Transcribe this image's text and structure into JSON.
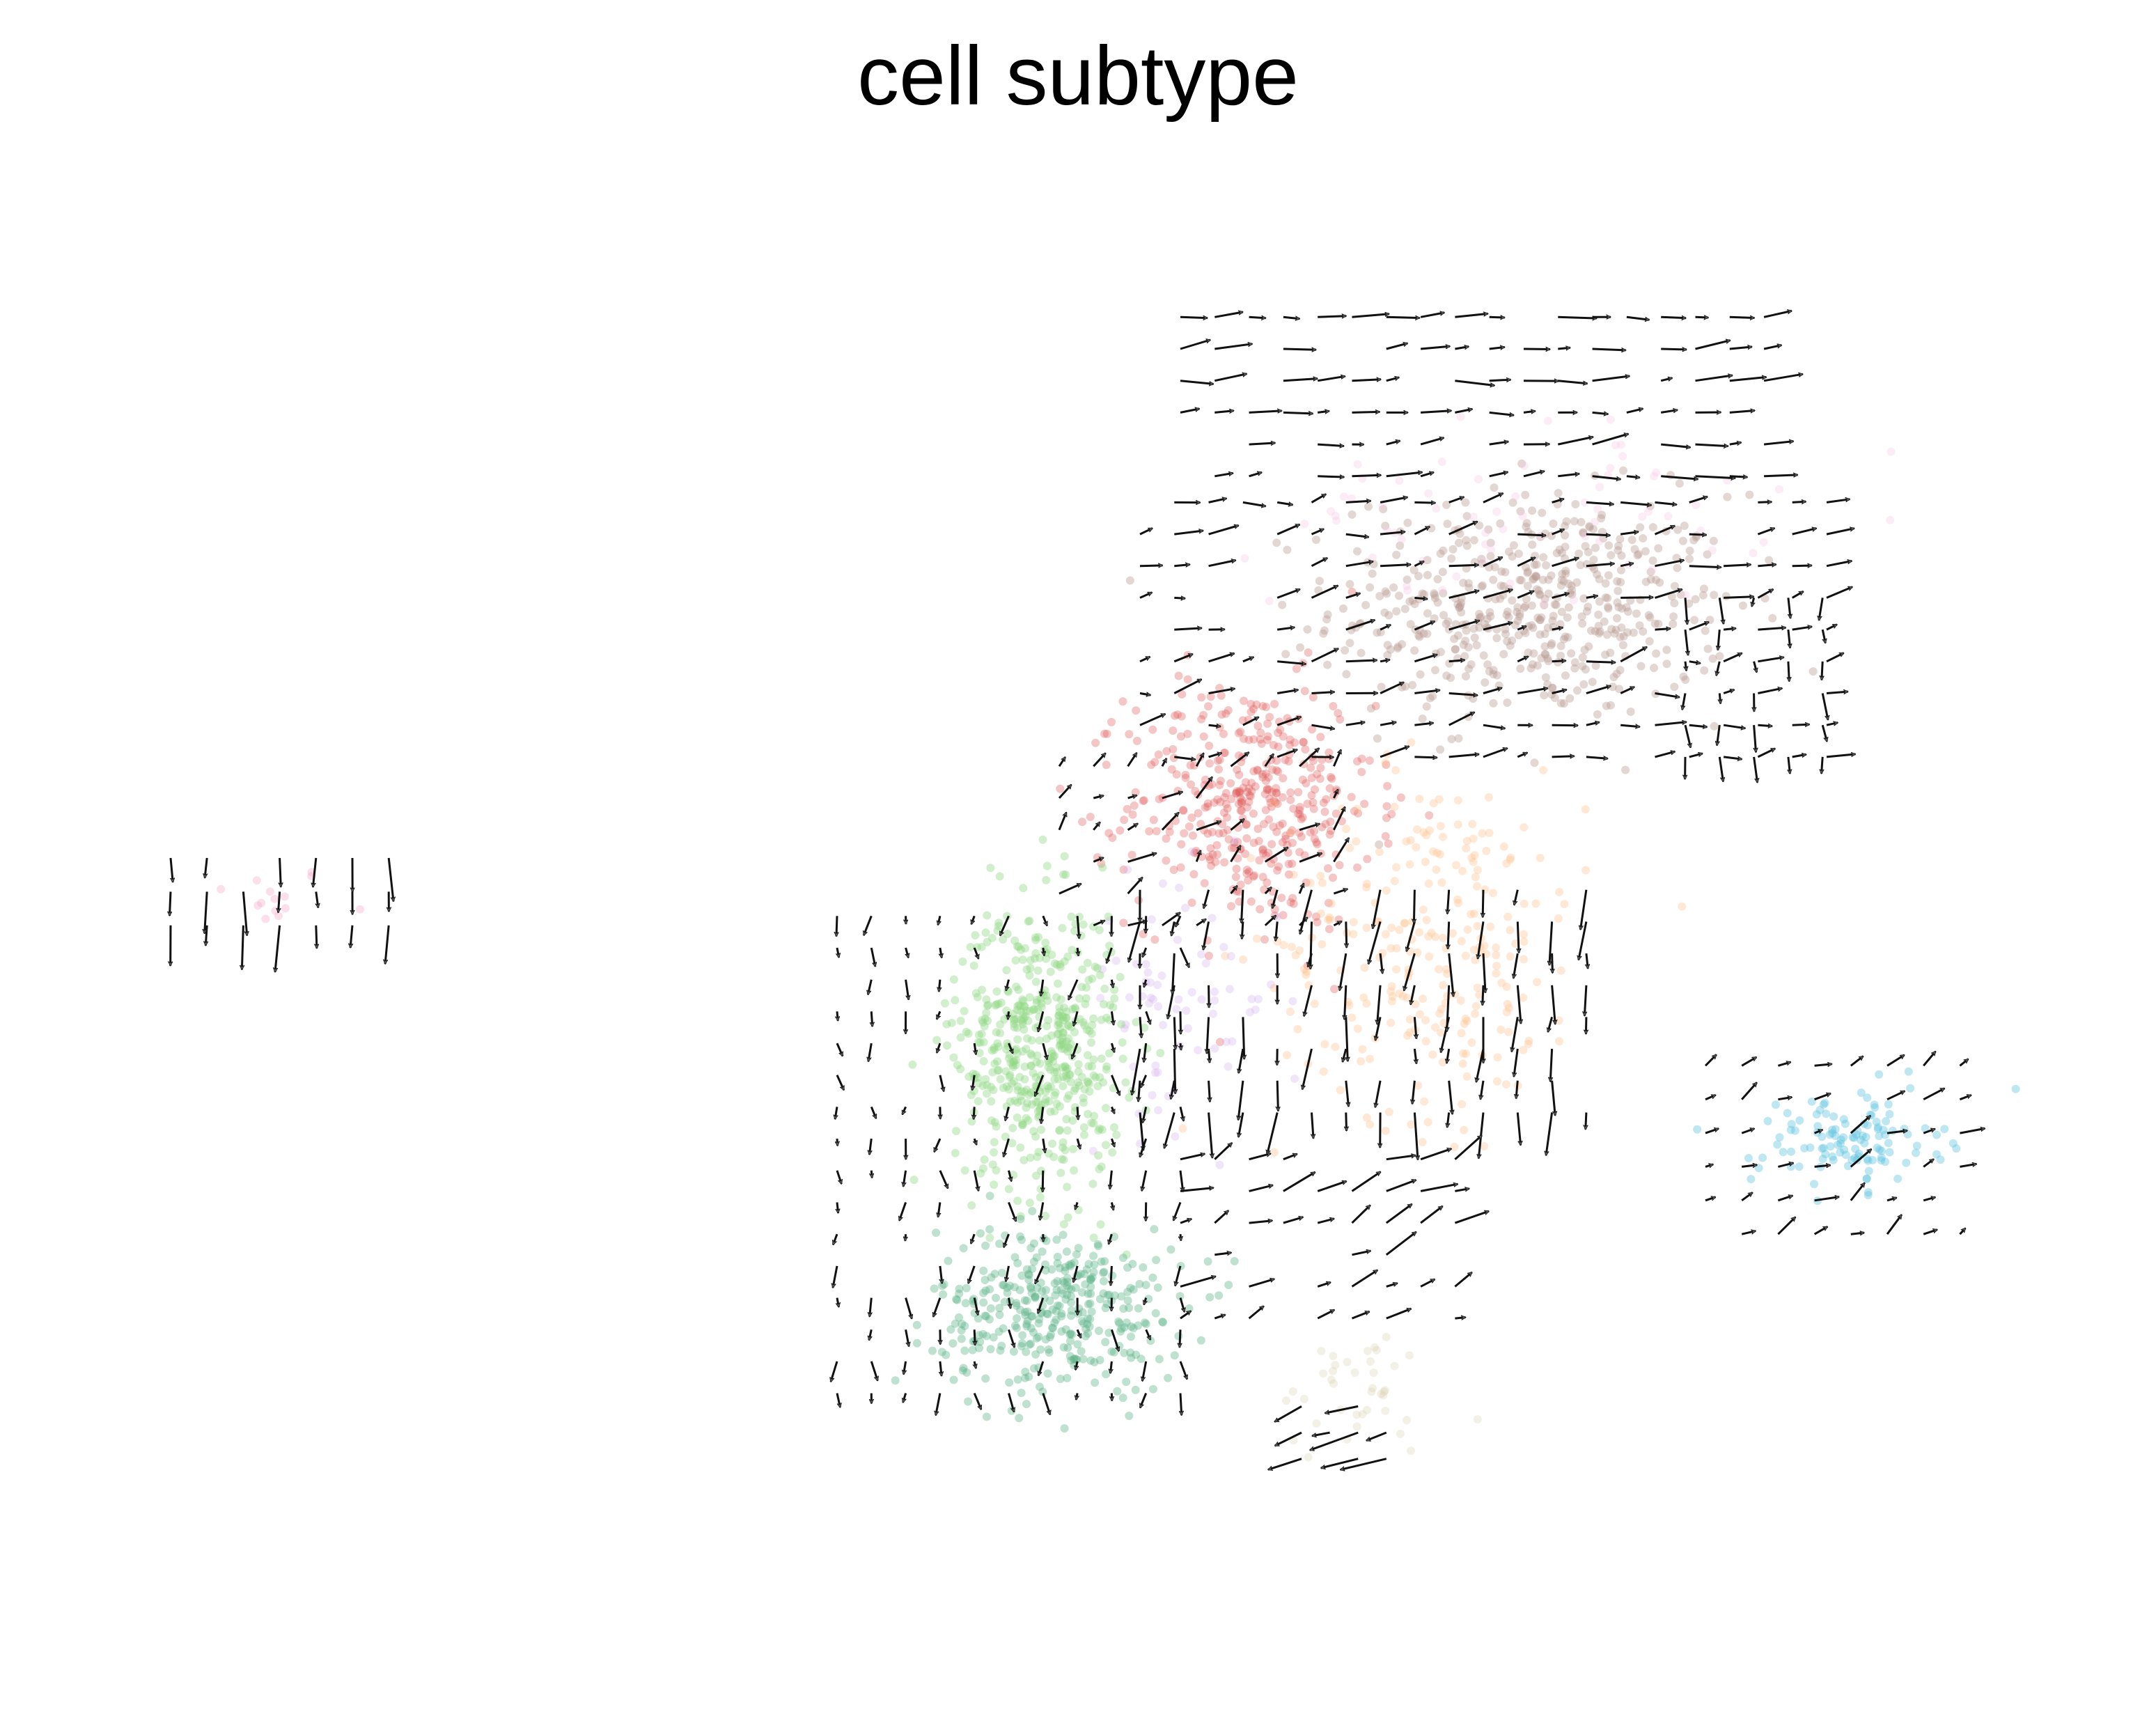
{
  "chart_data": {
    "type": "scatter",
    "subtype": "velocity-stream-embedding",
    "title": "cell subtype",
    "xlabel": "",
    "ylabel": "",
    "axes_visible": false,
    "grid": false,
    "legend": "none",
    "arrow_color": "#555555",
    "arrow_edge_color": "#111111",
    "xlim": [
      0,
      100
    ],
    "ylim": [
      0,
      80
    ],
    "clusters": [
      {
        "name": "pink",
        "color": "#f4a6c8",
        "center": [
          9.8,
          39.5
        ],
        "spread": [
          3.0,
          1.6
        ],
        "count": 14,
        "opacity": 0.35
      },
      {
        "name": "brown",
        "color": "#b89a94",
        "center": [
          72.5,
          55.0
        ],
        "spread": [
          9.0,
          5.5
        ],
        "count": 520,
        "opacity": 0.4
      },
      {
        "name": "light-pink",
        "color": "#f7c9e4",
        "center": [
          72.0,
          60.0
        ],
        "spread": [
          11.0,
          4.5
        ],
        "count": 70,
        "opacity": 0.35
      },
      {
        "name": "red",
        "color": "#e05c5c",
        "center": [
          58.5,
          44.5
        ],
        "spread": [
          5.5,
          6.0
        ],
        "count": 420,
        "opacity": 0.35
      },
      {
        "name": "orange",
        "color": "#ffbf8a",
        "center": [
          67.5,
          37.0
        ],
        "spread": [
          7.0,
          8.5
        ],
        "count": 260,
        "opacity": 0.35
      },
      {
        "name": "lavender",
        "color": "#d6b4ef",
        "center": [
          55.0,
          34.0
        ],
        "spread": [
          4.5,
          6.0
        ],
        "count": 70,
        "opacity": 0.35
      },
      {
        "name": "light-green",
        "color": "#8fd681",
        "center": [
          48.0,
          31.5
        ],
        "spread": [
          3.8,
          7.0
        ],
        "count": 520,
        "opacity": 0.4
      },
      {
        "name": "teal-green",
        "color": "#5fb58a",
        "center": [
          49.0,
          17.5
        ],
        "spread": [
          5.5,
          4.0
        ],
        "count": 360,
        "opacity": 0.4
      },
      {
        "name": "beige",
        "color": "#dcd5b4",
        "center": [
          64.0,
          13.0
        ],
        "spread": [
          4.0,
          3.0
        ],
        "count": 40,
        "opacity": 0.35
      },
      {
        "name": "cyan",
        "color": "#5cc3df",
        "center": [
          88.0,
          26.5
        ],
        "spread": [
          4.2,
          2.3
        ],
        "count": 120,
        "opacity": 0.4
      }
    ],
    "arrow_regions": [
      {
        "name": "left-island",
        "x": [
          5.0,
          16.5
        ],
        "y": [
          38.0,
          43.0
        ],
        "step": 1.8,
        "dir": 270,
        "len": 2.0,
        "jitter": 8
      },
      {
        "name": "top-band",
        "x": [
          55.0,
          84.0
        ],
        "y": [
          62.0,
          72.0
        ],
        "step": 1.7,
        "dir": 5,
        "len": 1.6,
        "jitter": 12
      },
      {
        "name": "upper-mass",
        "x": [
          53.0,
          88.0
        ],
        "y": [
          47.0,
          62.0
        ],
        "step": 1.7,
        "dir": 10,
        "len": 1.3,
        "jitter": 20
      },
      {
        "name": "red-core",
        "x": [
          49.0,
          64.0
        ],
        "y": [
          38.0,
          48.0
        ],
        "step": 1.7,
        "dir": 40,
        "len": 1.2,
        "jitter": 30
      },
      {
        "name": "right-edge",
        "x": [
          80.0,
          87.0
        ],
        "y": [
          47.0,
          56.0
        ],
        "step": 1.7,
        "dir": 270,
        "len": 1.1,
        "jitter": 15
      },
      {
        "name": "mid-down",
        "x": [
          53.0,
          76.0
        ],
        "y": [
          28.0,
          40.0
        ],
        "step": 1.7,
        "dir": 265,
        "len": 1.9,
        "jitter": 12
      },
      {
        "name": "green-left",
        "x": [
          38.0,
          56.0
        ],
        "y": [
          13.0,
          40.0
        ],
        "step": 1.7,
        "dir": 270,
        "len": 0.9,
        "jitter": 25
      },
      {
        "name": "lower-mid",
        "x": [
          55.0,
          69.0
        ],
        "y": [
          17.0,
          27.0
        ],
        "step": 1.7,
        "dir": 25,
        "len": 1.5,
        "jitter": 20
      },
      {
        "name": "bottom-left",
        "x": [
          61.0,
          66.0
        ],
        "y": [
          9.5,
          12.5
        ],
        "step": 1.4,
        "dir": 200,
        "len": 2.2,
        "jitter": 10
      },
      {
        "name": "cyan-island",
        "x": [
          81.0,
          95.0
        ],
        "y": [
          21.5,
          31.5
        ],
        "step": 1.8,
        "dir": 30,
        "len": 1.1,
        "jitter": 25
      }
    ]
  }
}
